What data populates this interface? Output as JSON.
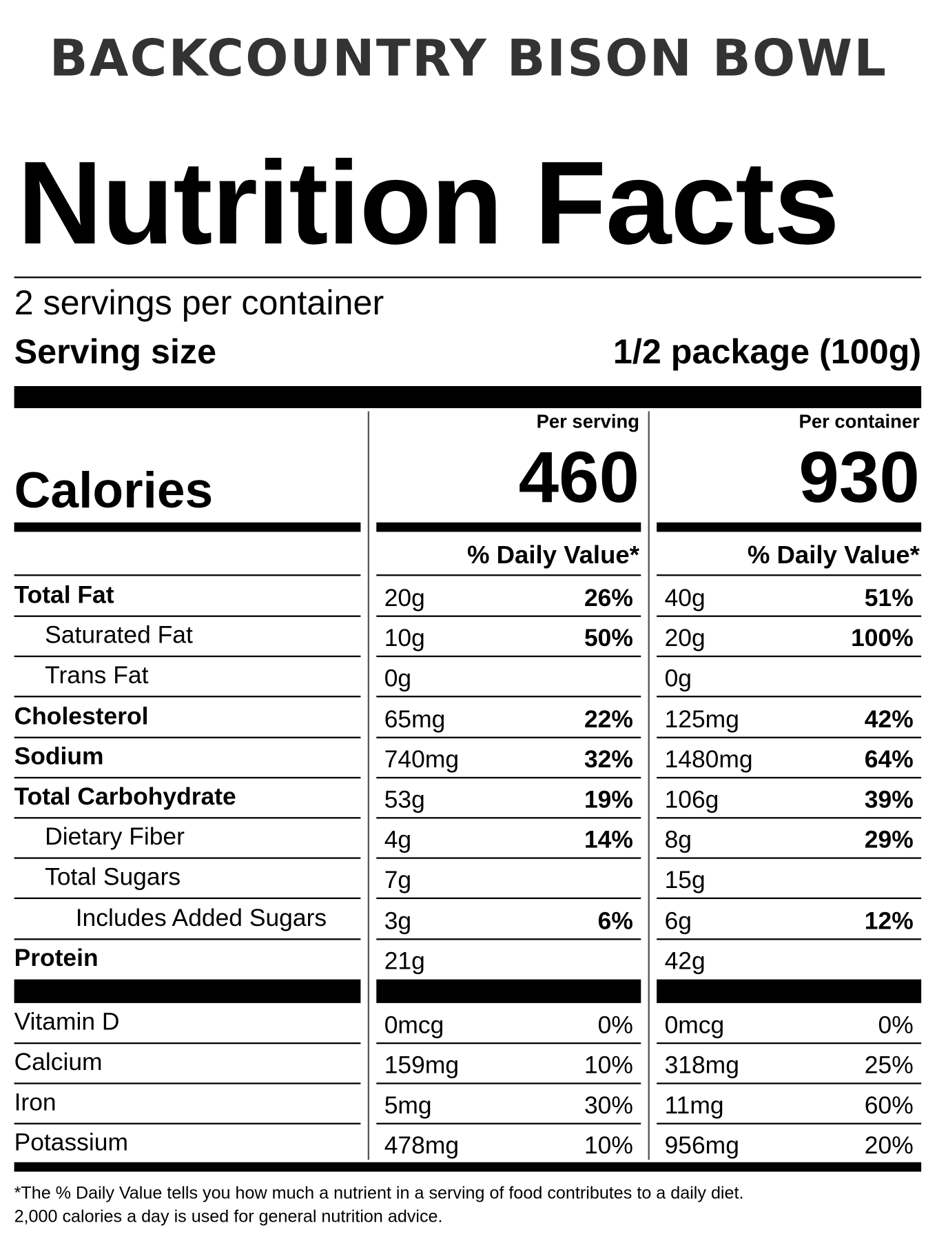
{
  "header": {
    "brand": "BACKCOUNTRY BISON BOWL",
    "title": "Nutrition Facts",
    "servings": "2 servings per container",
    "serving_size_label": "Serving size",
    "serving_size": "1/2 package (100g)"
  },
  "calories": {
    "label": "Calories",
    "columns": [
      {
        "heading": "Per serving",
        "value": "460",
        "dv_heading": "% Daily Value*"
      },
      {
        "heading": "Per container",
        "value": "930",
        "dv_heading": "% Daily Value*"
      }
    ]
  },
  "nutrients": [
    {
      "name": "Total Fat",
      "bold": true,
      "indent": 0,
      "per_serving": {
        "amount": "20g",
        "dv": "26%"
      },
      "per_container": {
        "amount": "40g",
        "dv": "51%"
      }
    },
    {
      "name": "Saturated Fat",
      "bold": false,
      "indent": 1,
      "per_serving": {
        "amount": "10g",
        "dv": "50%"
      },
      "per_container": {
        "amount": "20g",
        "dv": "100%"
      }
    },
    {
      "name": "Trans Fat",
      "bold": false,
      "indent": 1,
      "per_serving": {
        "amount": "0g"
      },
      "per_container": {
        "amount": "0g"
      }
    },
    {
      "name": "Cholesterol",
      "bold": true,
      "indent": 0,
      "per_serving": {
        "amount": "65mg",
        "dv": "22%"
      },
      "per_container": {
        "amount": "125mg",
        "dv": "42%"
      }
    },
    {
      "name": "Sodium",
      "bold": true,
      "indent": 0,
      "per_serving": {
        "amount": "740mg",
        "dv": "32%"
      },
      "per_container": {
        "amount": "1480mg",
        "dv": "64%"
      }
    },
    {
      "name": "Total Carbohydrate",
      "bold": true,
      "indent": 0,
      "per_serving": {
        "amount": "53g",
        "dv": "19%"
      },
      "per_container": {
        "amount": "106g",
        "dv": "39%"
      }
    },
    {
      "name": "Dietary Fiber",
      "bold": false,
      "indent": 1,
      "per_serving": {
        "amount": "4g",
        "dv": "14%"
      },
      "per_container": {
        "amount": "8g",
        "dv": "29%"
      }
    },
    {
      "name": "Total Sugars",
      "bold": false,
      "indent": 1,
      "per_serving": {
        "amount": "7g"
      },
      "per_container": {
        "amount": "15g"
      }
    },
    {
      "name": "Includes Added Sugars",
      "bold": false,
      "indent": 2,
      "per_serving": {
        "amount": "3g",
        "dv": "6%"
      },
      "per_container": {
        "amount": "6g",
        "dv": "12%"
      }
    },
    {
      "name": "Protein",
      "bold": true,
      "indent": 0,
      "per_serving": {
        "amount": "21g"
      },
      "per_container": {
        "amount": "42g"
      }
    }
  ],
  "vitamins": [
    {
      "name": "Vitamin D",
      "per_serving": {
        "amount": "0mcg",
        "dv": "0%"
      },
      "per_container": {
        "amount": "0mcg",
        "dv": "0%"
      }
    },
    {
      "name": "Calcium",
      "per_serving": {
        "amount": "159mg",
        "dv": "10%"
      },
      "per_container": {
        "amount": "318mg",
        "dv": "25%"
      }
    },
    {
      "name": "Iron",
      "per_serving": {
        "amount": "5mg",
        "dv": "30%"
      },
      "per_container": {
        "amount": "11mg",
        "dv": "60%"
      }
    },
    {
      "name": "Potassium",
      "per_serving": {
        "amount": "478mg",
        "dv": "10%"
      },
      "per_container": {
        "amount": "956mg",
        "dv": "20%"
      }
    }
  ],
  "footnote": [
    "*The % Daily Value tells you how much a nutrient in a serving of food contributes to a daily diet.",
    "2,000 calories a day is used for general nutrition advice."
  ]
}
